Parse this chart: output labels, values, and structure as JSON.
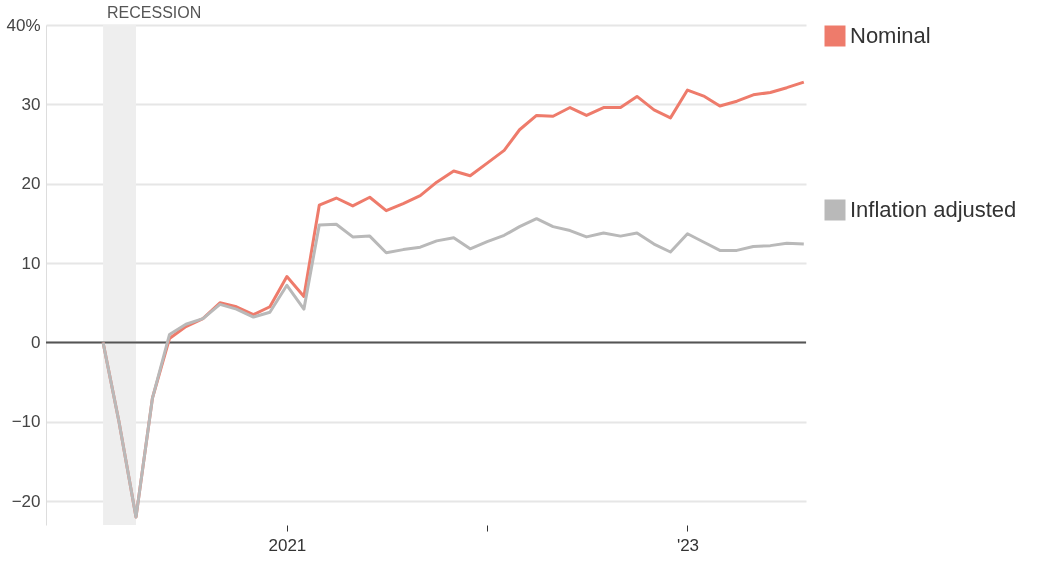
{
  "chart_data": {
    "type": "line",
    "x": [
      "2020-02",
      "2020-03",
      "2020-04",
      "2020-05",
      "2020-06",
      "2020-07",
      "2020-08",
      "2020-09",
      "2020-10",
      "2020-11",
      "2020-12",
      "2021-01",
      "2021-02",
      "2021-03",
      "2021-04",
      "2021-05",
      "2021-06",
      "2021-07",
      "2021-08",
      "2021-09",
      "2021-10",
      "2021-11",
      "2021-12",
      "2022-01",
      "2022-02",
      "2022-03",
      "2022-04",
      "2022-05",
      "2022-06",
      "2022-07",
      "2022-08",
      "2022-09",
      "2022-10",
      "2022-11",
      "2022-12",
      "2023-01",
      "2023-02",
      "2023-03",
      "2023-04",
      "2023-05",
      "2023-06",
      "2023-07",
      "2023-08"
    ],
    "series": [
      {
        "name": "Nominal",
        "color": "#ee7b6b",
        "values": [
          0,
          -10,
          -22,
          -7,
          0.5,
          2,
          3,
          5,
          4.5,
          3.5,
          4.5,
          8.3,
          5.8,
          17.3,
          18.2,
          17.2,
          18.3,
          16.6,
          17.5,
          18.5,
          20.2,
          21.6,
          21,
          22.6,
          24.2,
          26.8,
          28.6,
          28.5,
          29.6,
          28.6,
          29.6,
          29.6,
          31,
          29.3,
          28.3,
          31.8,
          31,
          29.8,
          30.4,
          31.2,
          31.5,
          32.1,
          32.8
        ]
      },
      {
        "name": "Inflation adjusted",
        "color": "#b9b9b9",
        "values": [
          0,
          -10,
          -22,
          -7,
          1,
          2.3,
          3,
          4.8,
          4.2,
          3.2,
          3.8,
          7.2,
          4.2,
          14.8,
          14.9,
          13.3,
          13.4,
          11.3,
          11.7,
          12,
          12.8,
          13.2,
          11.8,
          12.7,
          13.5,
          14.6,
          15.6,
          14.6,
          14.1,
          13.3,
          13.8,
          13.4,
          13.8,
          12.4,
          11.4,
          13.7,
          12.6,
          11.6,
          11.6,
          12.1,
          12.2,
          12.5,
          12.4
        ]
      }
    ],
    "xlim": [
      "2019-10-20",
      "2023-08-05"
    ],
    "xticks": [
      {
        "value": "2021-01",
        "label": "2021"
      },
      {
        "value": "2022-01",
        "label": null
      },
      {
        "value": "2023-01",
        "label": "'23"
      }
    ],
    "ylim": [
      -23,
      40
    ],
    "yticks": [
      -20,
      -10,
      0,
      10,
      20,
      30,
      {
        "value": 40,
        "label": "40%"
      }
    ],
    "grid": "y",
    "legend": "right",
    "ref_lines": [
      {
        "axis": "y",
        "value": 0,
        "color": "#555555"
      }
    ],
    "bands": [
      {
        "axis": "x",
        "from": "2020-02",
        "to": "2020-04",
        "label": "RECESSION",
        "color": "#eeeeee"
      }
    ],
    "line_style": "solid",
    "marker": "none"
  }
}
